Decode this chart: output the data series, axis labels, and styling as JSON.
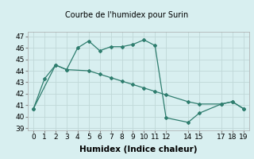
{
  "title": "Courbe de l'humidex pour Surin",
  "xlabel": "Humidex (Indice chaleur)",
  "xlim": [
    -0.5,
    19.5
  ],
  "ylim": [
    38.8,
    47.4
  ],
  "yticks": [
    39,
    40,
    41,
    42,
    43,
    44,
    45,
    46,
    47
  ],
  "xticks": [
    0,
    1,
    2,
    3,
    4,
    5,
    6,
    7,
    8,
    9,
    10,
    11,
    12,
    14,
    15,
    17,
    18,
    19
  ],
  "line1_x": [
    0,
    1,
    2,
    3,
    4,
    5,
    6,
    7,
    8,
    9,
    10,
    11,
    12,
    14,
    15,
    17,
    18,
    19
  ],
  "line1_y": [
    40.7,
    43.3,
    44.5,
    44.1,
    46.0,
    46.6,
    45.75,
    46.1,
    46.1,
    46.3,
    46.7,
    46.2,
    39.9,
    39.5,
    40.3,
    41.1,
    41.3,
    40.7
  ],
  "line2_x": [
    0,
    2,
    3,
    5,
    6,
    7,
    8,
    9,
    10,
    11,
    12,
    14,
    15,
    17,
    18,
    19
  ],
  "line2_y": [
    40.7,
    44.5,
    44.1,
    44.0,
    43.7,
    43.4,
    43.1,
    42.8,
    42.5,
    42.2,
    41.9,
    41.3,
    41.1,
    41.1,
    41.3,
    40.7
  ],
  "line_color": "#2e7d6e",
  "bg_color": "#d8eff0",
  "grid_color": "#c0d8d8",
  "tick_fontsize": 6.5,
  "label_fontsize": 7.5,
  "title_fontsize": 7
}
